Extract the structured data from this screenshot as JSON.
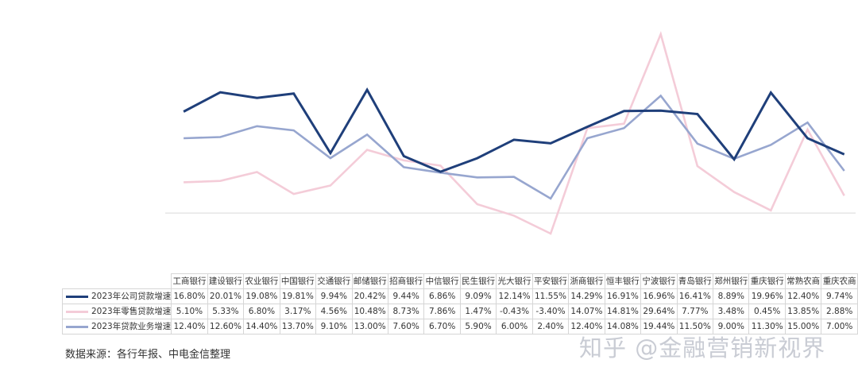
{
  "chart_data": {
    "type": "line",
    "categories": [
      "工商银行",
      "建设银行",
      "农业银行",
      "中国银行",
      "交通银行",
      "邮储银行",
      "招商银行",
      "中信银行",
      "民生银行",
      "光大银行",
      "平安银行",
      "浙商银行",
      "恒丰银行",
      "宁波银行",
      "青岛银行",
      "郑州银行",
      "重庆银行",
      "常熟农商",
      "重庆农商"
    ],
    "series": [
      {
        "name": "2023年公司贷款增速",
        "color": "#1f3f7a",
        "values": [
          16.8,
          20.01,
          19.08,
          19.81,
          9.94,
          20.42,
          9.44,
          6.86,
          9.09,
          12.14,
          11.55,
          14.29,
          16.91,
          16.96,
          16.41,
          8.89,
          19.96,
          12.4,
          9.74
        ],
        "labels": [
          "16.80%",
          "20.01%",
          "19.08%",
          "19.81%",
          "9.94%",
          "20.42%",
          "9.44%",
          "6.86%",
          "9.09%",
          "12.14%",
          "11.55%",
          "14.29%",
          "16.91%",
          "16.96%",
          "16.41%",
          "8.89%",
          "19.96%",
          "12.40%",
          "9.74%"
        ]
      },
      {
        "name": "2023年零售贷款增速",
        "color": "#f4ccd8",
        "values": [
          5.1,
          5.33,
          6.8,
          3.17,
          4.56,
          10.48,
          8.73,
          7.86,
          1.47,
          -0.43,
          -3.4,
          14.07,
          14.81,
          29.64,
          7.77,
          3.48,
          0.45,
          13.85,
          2.88
        ],
        "labels": [
          "5.10%",
          "5.33%",
          "6.80%",
          "3.17%",
          "4.56%",
          "10.48%",
          "8.73%",
          "7.86%",
          "1.47%",
          "-0.43%",
          "-3.40%",
          "14.07%",
          "14.81%",
          "29.64%",
          "7.77%",
          "3.48%",
          "0.45%",
          "13.85%",
          "2.88%"
        ]
      },
      {
        "name": "2023年贷款业务增速",
        "color": "#97a6cf",
        "values": [
          12.4,
          12.6,
          14.4,
          13.7,
          9.1,
          13.0,
          7.6,
          6.7,
          5.9,
          6.0,
          2.4,
          12.4,
          14.08,
          19.44,
          11.5,
          9.0,
          11.3,
          15.0,
          7.0
        ],
        "labels": [
          "12.40%",
          "12.60%",
          "14.40%",
          "13.70%",
          "9.10%",
          "13.00%",
          "7.60%",
          "6.70%",
          "5.90%",
          "6.00%",
          "2.40%",
          "12.40%",
          "14.08%",
          "19.44%",
          "11.50%",
          "9.00%",
          "11.30%",
          "15.00%",
          "7.00%"
        ]
      }
    ],
    "ylim": [
      -3.4,
      29.64
    ],
    "baseline": 0,
    "grid": false,
    "legend": "table-below"
  },
  "footer": {
    "source": "数据来源：各行年报、中电金信整理",
    "watermark": "知乎 @金融营销新视界"
  }
}
